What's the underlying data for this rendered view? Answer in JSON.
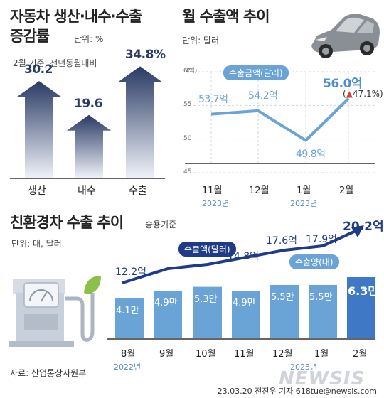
{
  "panel1": {
    "title_line1": "자동차 생산·내수·수출",
    "title_line2": "증감률",
    "unit": "단위: %",
    "note": "2월 기준, 전년동월대비"
  },
  "panel2": {
    "title": "월 수출액 추이",
    "unit": "단위: 달러",
    "ytick_unit": "(억)",
    "pill": "수출금액(달러)",
    "change_badge": "▲47.1%",
    "year_labels": [
      "2023년",
      "2023년"
    ]
  },
  "panel3": {
    "title": "친환경차 수출 추이",
    "subtitle": "승용기준",
    "unit": "단위: 대, 달러",
    "pill_amount": "수출액(달러)",
    "pill_volume": "수출양(대)",
    "year_labels": [
      "2022년",
      "2023년"
    ]
  },
  "footer": {
    "source": "자료: 산업통상자원부",
    "credit": "23.03.20 전진우 기자 618tue@newsis.com",
    "watermark": "NEWSIS"
  },
  "colors": {
    "navy": "#2a3a64",
    "light_blue": "#6aa3d6",
    "bar_blue": "#5b8fd0",
    "pill_navy": "#1f3a86"
  },
  "chart_data": [
    {
      "type": "bar",
      "categories": [
        "생산",
        "내수",
        "수출"
      ],
      "values": [
        30.2,
        19.6,
        34.8
      ],
      "value_labels": [
        "30.2",
        "19.6",
        "34.8%"
      ]
    },
    {
      "type": "line",
      "x": [
        "11월",
        "12월",
        "1월",
        "2월"
      ],
      "values": [
        53.7,
        54.2,
        49.8,
        56.0
      ],
      "value_labels": [
        "53.7억",
        "54.2억",
        "49.8억",
        "56.0억"
      ],
      "ylim": [
        45,
        60
      ],
      "yticks": [
        "60",
        "55",
        "50",
        "45"
      ]
    },
    {
      "type": "bar",
      "categories": [
        "8월",
        "9월",
        "10월",
        "11월",
        "12월",
        "1월",
        "2월"
      ],
      "series": [
        {
          "name": "수출양(대)",
          "values": [
            4.1,
            4.9,
            5.3,
            4.9,
            5.5,
            5.5,
            6.3
          ],
          "value_labels": [
            "4.1만",
            "4.9만",
            "5.3만",
            "4.9만",
            "5.5만",
            "5.5만",
            "6.3만"
          ]
        },
        {
          "name": "수출액(달러)",
          "values": [
            12.2,
            null,
            null,
            14.8,
            17.6,
            17.9,
            20.2
          ],
          "value_labels": [
            "12.2억",
            "",
            "",
            "14.8억",
            "17.6억",
            "17.9억",
            "20.2억"
          ]
        }
      ]
    }
  ]
}
